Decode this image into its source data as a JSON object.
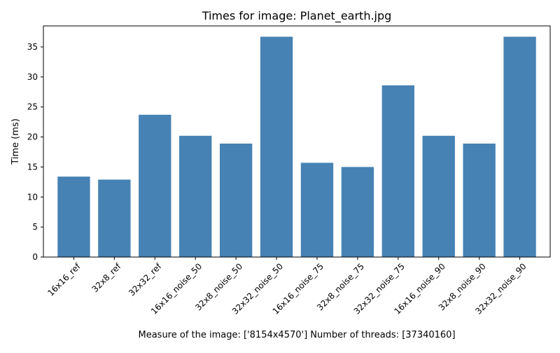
{
  "chart_data": {
    "type": "bar",
    "title": "Times for image: Planet_earth.jpg",
    "xlabel": "Measure of the image: ['8154x4570'] Number of threads: [37340160]",
    "ylabel": "Time (ms)",
    "categories": [
      "16x16_ref",
      "32x8_ref",
      "32x32_ref",
      "16x16_noise_50",
      "32x8_noise_50",
      "32x32_noise_50",
      "16x16_noise_75",
      "32x8_noise_75",
      "32x32_noise_75",
      "16x16_noise_90",
      "32x8_noise_90",
      "32x32_noise_90"
    ],
    "values": [
      13.4,
      12.9,
      23.7,
      20.2,
      18.9,
      36.7,
      15.7,
      15.0,
      28.6,
      20.2,
      18.9,
      36.7
    ],
    "yticks": [
      0,
      5,
      10,
      15,
      20,
      25,
      30,
      35
    ],
    "ylim": [
      0,
      38.5
    ],
    "bar_color": "#4682b4",
    "grid": false,
    "legend": "none"
  }
}
